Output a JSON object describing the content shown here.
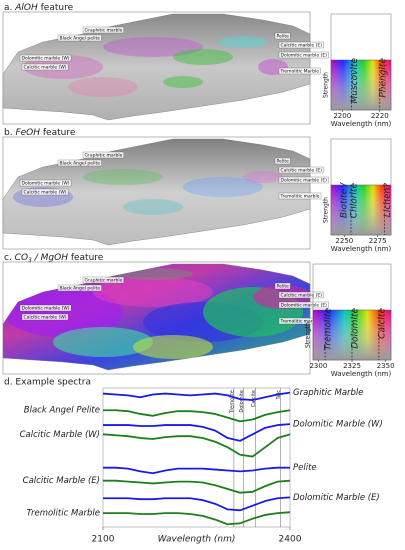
{
  "panels": [
    {
      "title": [
        {
          "text": "a. "
        },
        {
          "text": "AlOH",
          "italic": true
        },
        {
          "text": " feature"
        }
      ],
      "labels": [
        "Graphitic marble",
        "Black Angel pelite",
        "Dolomitic marble (W)",
        "Calcitic marble (W)",
        "Pelite",
        "Calcitic marble (E)",
        "Dolomitic marble (E)",
        "Tremolitic Marble"
      ],
      "colorbar": {
        "xlim": [
          2194,
          2226
        ],
        "xticks": [
          2200,
          2220
        ],
        "minerals": [
          {
            "x": 2205,
            "label": [
              "Muscovite"
            ]
          },
          {
            "x": 2220,
            "label": [
              "Phengite"
            ]
          }
        ],
        "ylabel": "Strength",
        "xlabel": "Wavelength (nm)"
      }
    },
    {
      "title": [
        {
          "text": "b. "
        },
        {
          "text": "FeOH",
          "italic": true
        },
        {
          "text": " feature"
        }
      ],
      "labels": [
        "Graphitic marble",
        "Black Angel pelite",
        "Dolomitic marble (W)",
        "Calcitic marble (W)",
        "Pelite",
        "Calcitic marble (E)",
        "Dolomitic marble (E)",
        "Tremolitic marble"
      ],
      "colorbar": {
        "xlim": [
          2240,
          2285
        ],
        "xticks": [
          2250,
          2275
        ],
        "minerals": [
          {
            "x": 2255,
            "label": [
              "Biotite /",
              "Chlorite"
            ]
          },
          {
            "x": 2280,
            "label": [
              "Lichen?"
            ]
          }
        ],
        "ylabel": "Strength",
        "xlabel": "Wavelength (nm)"
      }
    },
    {
      "title": [
        {
          "text": "c. "
        },
        {
          "text": "CO",
          "italic": true
        },
        {
          "text": "3",
          "italic": true,
          "sub": true
        },
        {
          "text": " / MgOH",
          "italic": true
        },
        {
          "text": " feature"
        }
      ],
      "labels": [
        "Graphitic marble",
        "Black Angel pelite",
        "Dolomitic marble (W)",
        "Calcitic marble (W)",
        "Pelite",
        "Calcitic marble (E)",
        "Dolomitic marble (E)",
        "Tremolitic marble"
      ],
      "colorbar": {
        "xlim": [
          2296,
          2354
        ],
        "xticks": [
          2300,
          2325,
          2350
        ],
        "minerals": [
          {
            "x": 2305,
            "label": [
              "Tremolite"
            ]
          },
          {
            "x": 2325,
            "label": [
              "Dolomite"
            ]
          },
          {
            "x": 2345,
            "label": [
              "Calcite"
            ]
          }
        ],
        "ylabel": "Strength",
        "xlabel": "Wavelength (nm)"
      }
    }
  ],
  "chart_data": {
    "type": "line",
    "title": "d. Example spectra",
    "xlabel": "Wavelength (nm)",
    "x": [
      2100,
      2120,
      2140,
      2160,
      2180,
      2200,
      2220,
      2240,
      2260,
      2280,
      2300,
      2320,
      2340,
      2360,
      2380,
      2400
    ],
    "xlim": [
      2100,
      2400
    ],
    "xticks": [
      2100,
      2400
    ],
    "ylim": [
      0,
      15
    ],
    "reference_lines": [
      {
        "x": 2310,
        "label": "Tremolite"
      },
      {
        "x": 2325,
        "label": "Dolomite"
      },
      {
        "x": 2345,
        "label": "Calcite"
      },
      {
        "x": 2385,
        "label": "Talc"
      }
    ],
    "series": [
      {
        "name": "Graphitic Marble",
        "color": "#1a1ae6",
        "label_side": "right",
        "values": [
          14.4,
          14.3,
          14.2,
          14.0,
          14.3,
          14.4,
          14.3,
          14.2,
          14.3,
          14.4,
          14.2,
          13.8,
          13.7,
          14.0,
          14.3,
          14.5
        ]
      },
      {
        "name": "Black Angel Pelite",
        "color": "#1b7f1b",
        "label_side": "left",
        "values": [
          12.6,
          12.6,
          12.5,
          12.2,
          12.0,
          12.3,
          12.5,
          12.5,
          12.4,
          12.2,
          11.8,
          11.4,
          11.6,
          12.1,
          12.4,
          12.6
        ]
      },
      {
        "name": "Dolomitic Marble (W)",
        "color": "#1a1ae6",
        "label_side": "right",
        "values": [
          11.0,
          11.0,
          11.0,
          10.9,
          10.9,
          11.0,
          11.0,
          11.0,
          10.8,
          10.4,
          9.6,
          9.3,
          10.0,
          10.7,
          11.0,
          11.1
        ]
      },
      {
        "name": "Calcitic Marble (W)",
        "color": "#1b7f1b",
        "label_side": "left",
        "values": [
          10.0,
          9.9,
          9.8,
          9.6,
          9.5,
          9.7,
          9.8,
          9.8,
          9.6,
          9.2,
          8.6,
          7.8,
          7.6,
          8.6,
          9.6,
          10.0
        ]
      },
      {
        "name": "Pelite",
        "color": "#1a1ae6",
        "label_side": "right",
        "values": [
          6.4,
          6.4,
          6.3,
          6.0,
          5.8,
          6.1,
          6.3,
          6.3,
          6.3,
          6.2,
          6.1,
          6.0,
          6.1,
          6.3,
          6.4,
          6.4
        ]
      },
      {
        "name": "Calcitic Marble (E)",
        "color": "#1b7f1b",
        "label_side": "left",
        "values": [
          5.0,
          5.0,
          4.9,
          4.8,
          4.7,
          4.8,
          4.9,
          4.9,
          4.8,
          4.5,
          4.1,
          3.7,
          3.8,
          4.4,
          4.9,
          5.0
        ]
      },
      {
        "name": "Dolomitic Marble (E)",
        "color": "#1a1ae6",
        "label_side": "right",
        "values": [
          3.1,
          3.1,
          3.1,
          3.0,
          3.0,
          3.1,
          3.1,
          3.1,
          2.9,
          2.5,
          1.9,
          1.8,
          2.3,
          2.8,
          3.1,
          3.2
        ]
      },
      {
        "name": "Tremolitic Marble",
        "color": "#1b7f1b",
        "label_side": "left",
        "values": [
          1.5,
          1.5,
          1.5,
          1.4,
          1.4,
          1.5,
          1.5,
          1.4,
          1.2,
          0.8,
          0.3,
          0.4,
          0.9,
          1.3,
          1.5,
          1.6
        ]
      }
    ]
  }
}
